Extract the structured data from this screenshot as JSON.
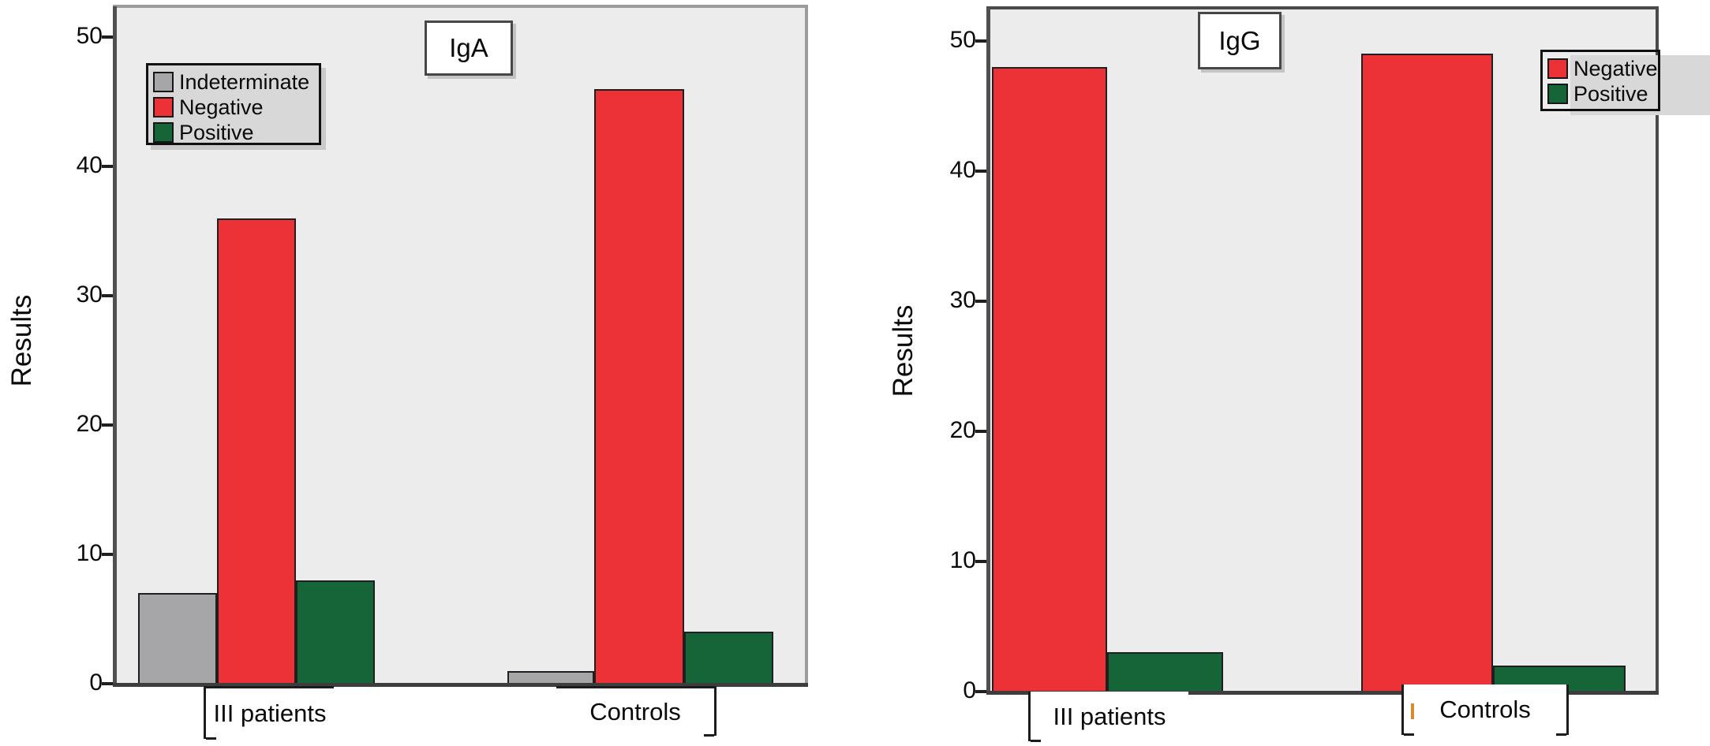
{
  "colors": {
    "negative": "#ed3237",
    "positive": "#166538",
    "indeterminate": "#a6a6a8",
    "plot_background": "#ececec",
    "legend_background": "#d8d8d8",
    "axis": "#3d3d3d"
  },
  "chart_data": [
    {
      "type": "bar",
      "title": "IgA",
      "ylabel": "Results",
      "xlabel": "",
      "categories": [
        "III patients",
        "Controls"
      ],
      "series": [
        {
          "name": "Indeterminate",
          "color": "#a6a6a8",
          "values": [
            7,
            1
          ]
        },
        {
          "name": "Negative",
          "color": "#ed3237",
          "values": [
            36,
            46
          ]
        },
        {
          "name": "Positive",
          "color": "#166538",
          "values": [
            8,
            4
          ]
        }
      ],
      "yticks": [
        0,
        10,
        20,
        30,
        40,
        50
      ],
      "ylim": [
        0,
        52
      ],
      "grid": false,
      "legend_position": "top-left"
    },
    {
      "type": "bar",
      "title": "IgG",
      "ylabel": "Results",
      "xlabel": "",
      "categories": [
        "III patients",
        "Controls"
      ],
      "series": [
        {
          "name": "Negative",
          "color": "#ed3237",
          "values": [
            48,
            49
          ]
        },
        {
          "name": "Positive",
          "color": "#166538",
          "values": [
            3,
            2
          ]
        }
      ],
      "yticks": [
        0,
        10,
        20,
        30,
        40,
        50
      ],
      "ylim": [
        0,
        52
      ],
      "grid": false,
      "legend_position": "top-right"
    }
  ]
}
